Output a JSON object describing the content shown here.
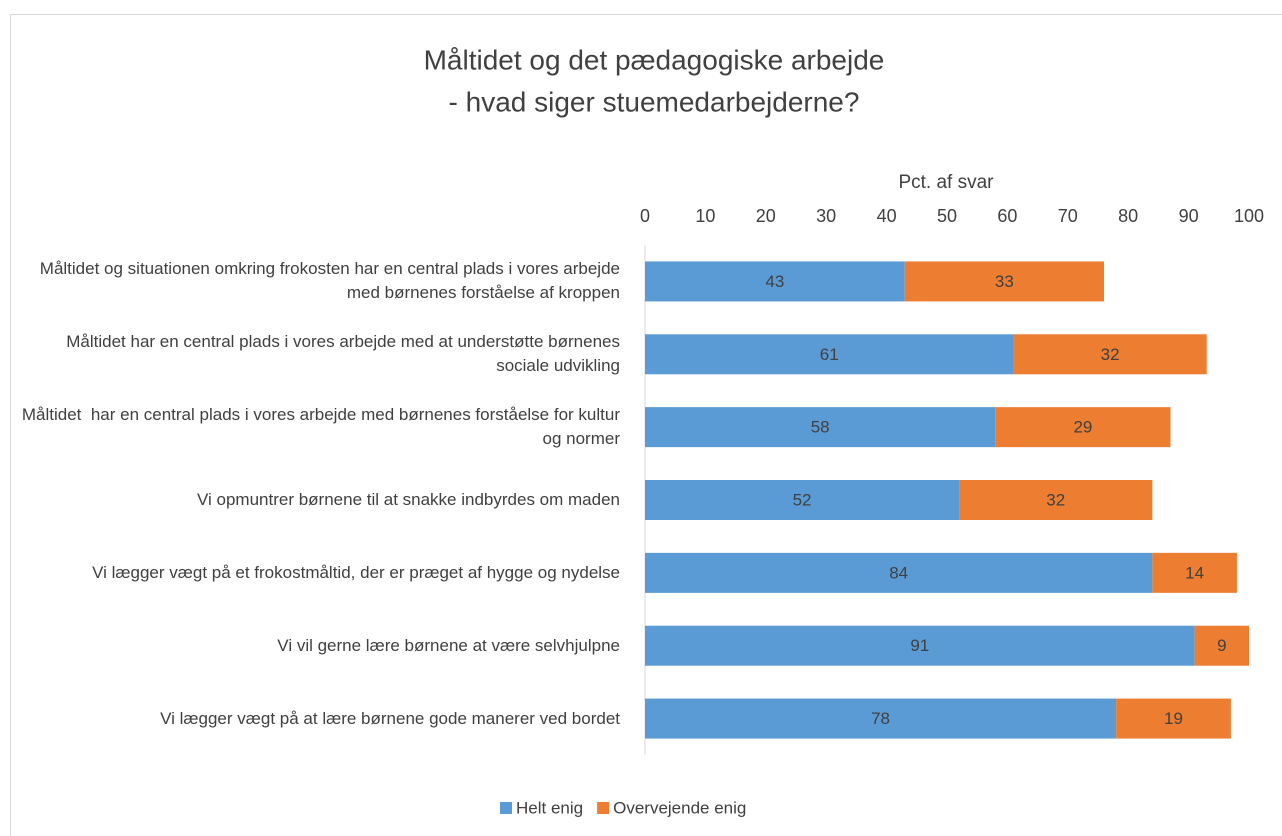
{
  "chart_data": {
    "type": "stacked_barh",
    "title": "Måltidet og det pædagogiske arbejde",
    "subtitle": "- hvad siger stuemedarbejderne?",
    "xlabel": "Pct. af svar",
    "categories": [
      "Måltidet og situationen omkring frokosten har en central plads i vores arbejde med børnenes forståelse af kroppen",
      "Måltidet har en central plads i vores arbejde med at understøtte børnenes sociale udvikling",
      "Måltidet  har en central plads i vores arbejde med børnenes forståelse for kultur og normer",
      "Vi opmuntrer børnene til at snakke indbyrdes om maden",
      "Vi lægger vægt på et frokostmåltid, der er præget af hygge og nydelse",
      "Vi vil gerne lære børnene at være selvhjulpne",
      "Vi lægger vægt på at lære børnene gode manerer ved bordet"
    ],
    "series": [
      {
        "name": "Helt enig",
        "color": "#5b9bd5",
        "values": [
          43,
          61,
          58,
          52,
          84,
          91,
          78
        ]
      },
      {
        "name": "Overvejende enig",
        "color": "#ed7d31",
        "values": [
          33,
          32,
          29,
          32,
          14,
          9,
          19
        ]
      }
    ],
    "xlim": [
      0,
      100
    ],
    "xticks": [
      0,
      10,
      20,
      30,
      40,
      50,
      60,
      70,
      80,
      90,
      100
    ],
    "legend": "bottom"
  }
}
